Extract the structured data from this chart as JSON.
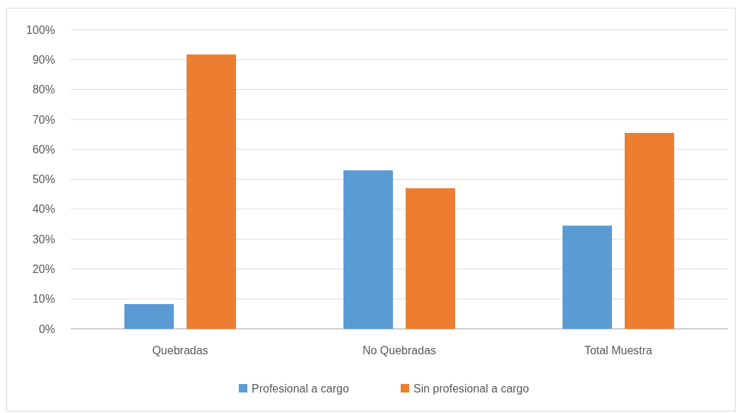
{
  "chart_data": {
    "type": "bar",
    "categories": [
      "Quebradas",
      "No Quebradas",
      "Total Muestra"
    ],
    "series": [
      {
        "name": "Profesional a cargo",
        "color": "#5b9bd5",
        "values": [
          8.3,
          53.0,
          34.5
        ]
      },
      {
        "name": "Sin profesional a cargo",
        "color": "#ed7d31",
        "values": [
          91.7,
          47.0,
          65.5
        ]
      }
    ],
    "ylim": [
      0,
      100
    ],
    "yticks": [
      {
        "value": 0,
        "label": "0%"
      },
      {
        "value": 10,
        "label": "10%"
      },
      {
        "value": 20,
        "label": "20%"
      },
      {
        "value": 30,
        "label": "30%"
      },
      {
        "value": 40,
        "label": "40%"
      },
      {
        "value": 50,
        "label": "50%"
      },
      {
        "value": 60,
        "label": "60%"
      },
      {
        "value": 70,
        "label": "70%"
      },
      {
        "value": 80,
        "label": "80%"
      },
      {
        "value": 90,
        "label": "90%"
      },
      {
        "value": 100,
        "label": "100%"
      }
    ],
    "grid": "y",
    "legend": "bottom"
  }
}
